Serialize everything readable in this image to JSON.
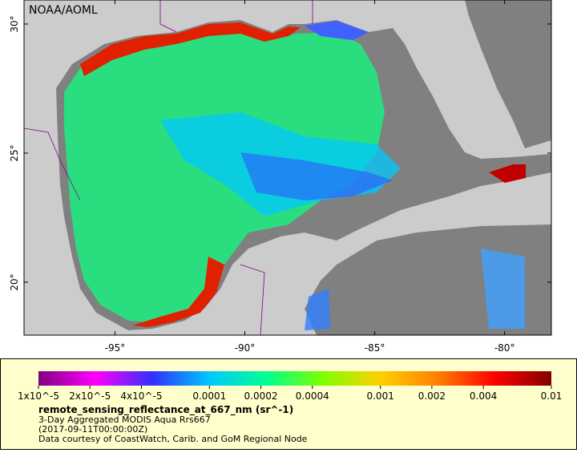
{
  "map": {
    "credit": "NOAA/AOML",
    "xlim": [
      -98.5,
      -78.2
    ],
    "ylim": [
      17.95,
      30.93
    ],
    "xticks": [
      {
        "value": -95,
        "label": "-95°"
      },
      {
        "value": -90,
        "label": "-90°"
      },
      {
        "value": -85,
        "label": "-85°"
      },
      {
        "value": -80,
        "label": "-80°"
      }
    ],
    "yticks": [
      {
        "value": 30,
        "label": "30°"
      },
      {
        "value": 25,
        "label": "25°"
      },
      {
        "value": 20,
        "label": "20°"
      }
    ]
  },
  "colorbar": {
    "range": [
      1e-05,
      0.01
    ],
    "log_scale": true,
    "colors": [
      "#800080",
      "#ff00ff",
      "#3030ff",
      "#00c8ff",
      "#00ff90",
      "#80ff00",
      "#ffd000",
      "#ff8000",
      "#ff0000",
      "#800000"
    ],
    "ticks": [
      {
        "value": 1e-05,
        "label": "1x10^-5"
      },
      {
        "value": 2e-05,
        "label": "2x10^-5"
      },
      {
        "value": 4e-05,
        "label": "4x10^-5"
      },
      0.0001,
      0.0002,
      0.0004,
      0.001,
      0.002,
      0.004,
      0.01
    ]
  },
  "legend": {
    "variable": "remote_sensing_reflectance_at_667_nm (sr^-1)",
    "line1": "3-Day Aggregated MODIS Aqua Rrs667",
    "line2": "(2017-09-11T00:00:00Z)",
    "line3": "Data courtesy of CoastWatch, Carib. and GoM Regional Node"
  }
}
